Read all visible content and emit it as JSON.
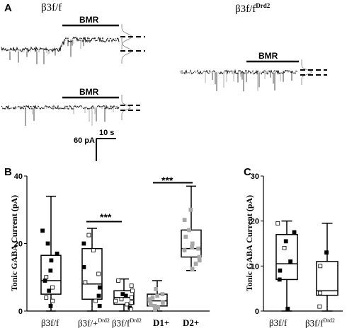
{
  "panels": {
    "a_label": "A",
    "b_label": "B",
    "c_label": "C"
  },
  "panel_a": {
    "condition_left": "β3f/f",
    "condition_right_base": "β3f/f",
    "condition_right_sup": "Drd2",
    "drug_label": "BMR",
    "scale_time": "10 s",
    "scale_current": "60 pA"
  },
  "colors": {
    "trace": "#1a1a1a",
    "trace_light": "#9a9a9a",
    "box": "#000000"
  },
  "chart_data": [
    {
      "type": "box",
      "panel": "B",
      "ylabel": "Tonic GABA Current (pA)",
      "yticks": [
        "0",
        "20",
        "40"
      ],
      "ylim": [
        0,
        40
      ],
      "significance": [
        "***",
        "***"
      ],
      "groups": [
        {
          "label": "β3f/f",
          "label_sup": "",
          "q1": 5,
          "median": 9,
          "q3": 16.5,
          "whisker_low": 0,
          "whisker_high": 34,
          "points": [
            23.8,
            20,
            17,
            15,
            12,
            10,
            9,
            7,
            6,
            4,
            3,
            1.5
          ]
        },
        {
          "label": "β3f/+",
          "label_sup": "Drd2",
          "q1": 3.5,
          "median": 8,
          "q3": 18.5,
          "whisker_low": 0,
          "whisker_high": 24.5,
          "points": [
            22.5,
            20,
            18,
            13,
            11,
            8.5,
            7,
            4.5,
            3,
            1.5
          ]
        },
        {
          "label": "β3f/f",
          "label_sup": "Drd2",
          "q1": 2,
          "median": 4,
          "q3": 6,
          "whisker_low": 0,
          "whisker_high": 9.5,
          "points": [
            9,
            7.5,
            6,
            5,
            4.5,
            4,
            3.5,
            3,
            2.5,
            2,
            1,
            0.5
          ]
        },
        {
          "label": "D1+",
          "label_sup": "",
          "q1": 1.5,
          "median": 3,
          "q3": 5,
          "whisker_low": 0,
          "whisker_high": 9,
          "points": [
            6.5,
            5,
            4.5,
            4,
            3.5,
            3,
            2.5,
            2,
            1.5,
            1,
            0.5
          ]
        },
        {
          "label": "D2+",
          "label_sup": "",
          "q1": 16,
          "median": 18.5,
          "q3": 24,
          "whisker_low": 12,
          "whisker_high": 37,
          "points": [
            30,
            27,
            24,
            22,
            20,
            19,
            18.5,
            18,
            16,
            15,
            14,
            12.5
          ]
        }
      ]
    },
    {
      "type": "box",
      "panel": "C",
      "ylabel": "Tonic GABA Current (pA)",
      "yticks": [
        "0",
        "10",
        "20",
        "30"
      ],
      "ylim": [
        0,
        30
      ],
      "groups": [
        {
          "label": "β3f/f",
          "label_sup": "",
          "q1": 7,
          "median": 10.5,
          "q3": 17,
          "whisker_low": 0,
          "whisker_high": 20,
          "points": [
            19.5,
            17.5,
            15.5,
            14,
            11,
            9,
            7,
            0.5
          ]
        },
        {
          "label": "β3f/f",
          "label_sup": "Drd2",
          "q1": 3.5,
          "median": 4.5,
          "q3": 11,
          "whisker_low": 0,
          "whisker_high": 19.5,
          "points": [
            13,
            10,
            4,
            1
          ]
        }
      ]
    }
  ]
}
